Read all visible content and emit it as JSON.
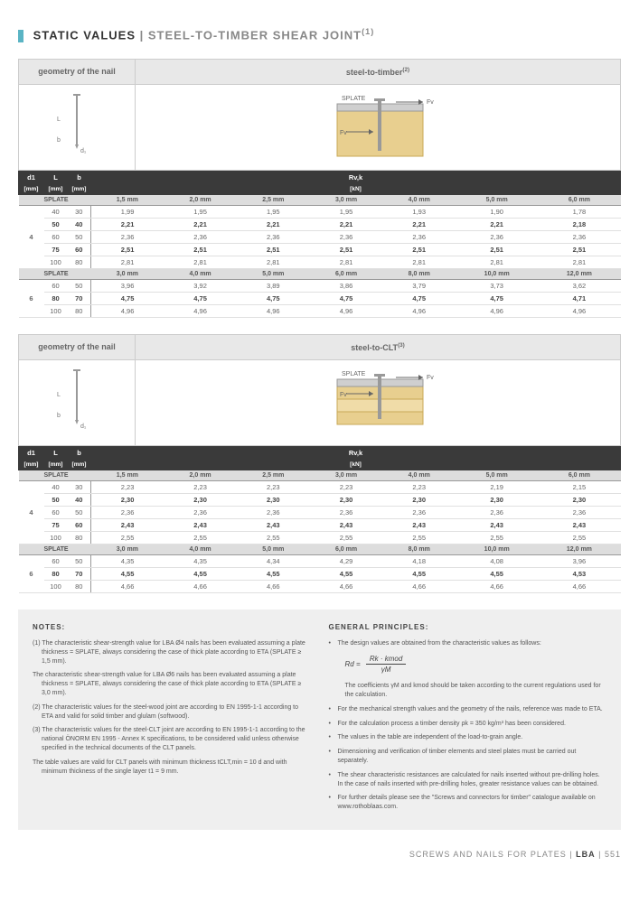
{
  "title": {
    "main": "STATIC VALUES",
    "sub": "STEEL-TO-TIMBER SHEAR JOINT",
    "sup": "(1)"
  },
  "geom_header": "geometry of the nail",
  "section1": {
    "header": "steel-to-timber",
    "sup": "(2)",
    "labels": {
      "S": "SPLATE",
      "Fv": "Fv"
    }
  },
  "section2": {
    "header": "steel-to-CLT",
    "sup": "(3)"
  },
  "cols_header": {
    "d1": "d1",
    "L": "L",
    "b": "b",
    "R": "Rv,k",
    "mm": "[mm]",
    "kn": "[kN]"
  },
  "splate_label": "SPLATE",
  "splate_units_a": [
    "1,5 mm",
    "2,0 mm",
    "2,5 mm",
    "3,0 mm",
    "4,0 mm",
    "5,0 mm",
    "6,0 mm"
  ],
  "splate_units_b": [
    "3,0 mm",
    "4,0 mm",
    "5,0 mm",
    "6,0 mm",
    "8,0 mm",
    "10,0 mm",
    "12,0 mm"
  ],
  "table1": {
    "group4": [
      {
        "L": "40",
        "b": "30",
        "v": [
          "1,99",
          "1,95",
          "1,95",
          "1,95",
          "1,93",
          "1,90",
          "1,78"
        ]
      },
      {
        "L": "50",
        "b": "40",
        "v": [
          "2,21",
          "2,21",
          "2,21",
          "2,21",
          "2,21",
          "2,21",
          "2,18"
        ],
        "bold": true
      },
      {
        "L": "60",
        "b": "50",
        "v": [
          "2,36",
          "2,36",
          "2,36",
          "2,36",
          "2,36",
          "2,36",
          "2,36"
        ]
      },
      {
        "L": "75",
        "b": "60",
        "v": [
          "2,51",
          "2,51",
          "2,51",
          "2,51",
          "2,51",
          "2,51",
          "2,51"
        ],
        "bold": true
      },
      {
        "L": "100",
        "b": "80",
        "v": [
          "2,81",
          "2,81",
          "2,81",
          "2,81",
          "2,81",
          "2,81",
          "2,81"
        ]
      }
    ],
    "group6": [
      {
        "L": "60",
        "b": "50",
        "v": [
          "3,96",
          "3,92",
          "3,89",
          "3,86",
          "3,79",
          "3,73",
          "3,62"
        ]
      },
      {
        "L": "80",
        "b": "70",
        "v": [
          "4,75",
          "4,75",
          "4,75",
          "4,75",
          "4,75",
          "4,75",
          "4,71"
        ],
        "bold": true
      },
      {
        "L": "100",
        "b": "80",
        "v": [
          "4,96",
          "4,96",
          "4,96",
          "4,96",
          "4,96",
          "4,96",
          "4,96"
        ]
      }
    ]
  },
  "table2": {
    "group4": [
      {
        "L": "40",
        "b": "30",
        "v": [
          "2,23",
          "2,23",
          "2,23",
          "2,23",
          "2,23",
          "2,19",
          "2,15"
        ]
      },
      {
        "L": "50",
        "b": "40",
        "v": [
          "2,30",
          "2,30",
          "2,30",
          "2,30",
          "2,30",
          "2,30",
          "2,30"
        ],
        "bold": true
      },
      {
        "L": "60",
        "b": "50",
        "v": [
          "2,36",
          "2,36",
          "2,36",
          "2,36",
          "2,36",
          "2,36",
          "2,36"
        ]
      },
      {
        "L": "75",
        "b": "60",
        "v": [
          "2,43",
          "2,43",
          "2,43",
          "2,43",
          "2,43",
          "2,43",
          "2,43"
        ],
        "bold": true
      },
      {
        "L": "100",
        "b": "80",
        "v": [
          "2,55",
          "2,55",
          "2,55",
          "2,55",
          "2,55",
          "2,55",
          "2,55"
        ]
      }
    ],
    "group6": [
      {
        "L": "60",
        "b": "50",
        "v": [
          "4,35",
          "4,35",
          "4,34",
          "4,29",
          "4,18",
          "4,08",
          "3,96"
        ]
      },
      {
        "L": "80",
        "b": "70",
        "v": [
          "4,55",
          "4,55",
          "4,55",
          "4,55",
          "4,55",
          "4,55",
          "4,53"
        ],
        "bold": true
      },
      {
        "L": "100",
        "b": "80",
        "v": [
          "4,66",
          "4,66",
          "4,66",
          "4,66",
          "4,66",
          "4,66",
          "4,66"
        ]
      }
    ]
  },
  "notes": {
    "title": "NOTES:",
    "items": [
      "(1) The characteristic shear-strength value for LBA Ø4 nails has been evaluated assuming a plate thickness = SPLATE, always considering the case of thick plate according to ETA (SPLATE ≥ 1,5 mm).",
      "The characteristic shear-strength value for LBA Ø6 nails has been evaluated assuming a plate thickness = SPLATE, always considering the case of thick plate according to ETA (SPLATE ≥ 3,0 mm).",
      "(2) The characteristic values for the steel-wood joint are according to EN 1995-1-1 according to ETA and valid for solid timber and glulam (softwood).",
      "(3) The characteristic values for the steel-CLT joint are according to EN 1995-1-1 according to the national ÖNORM EN 1995 - Annex K specifications, to be considered valid unless otherwise specified in the technical documents of the CLT panels.",
      "The table values are valid for CLT panels with minimum thickness tCLT,min = 10 d and with minimum thickness of the single layer t1 = 9 mm."
    ]
  },
  "principles": {
    "title": "GENERAL PRINCIPLES:",
    "intro": "The design values are obtained from the characteristic values as follows:",
    "formula": {
      "lhs": "Rd =",
      "num": "Rk · kmod",
      "den": "γM"
    },
    "coeff": "The coefficients γM and kmod should be taken according to the current regulations used for the calculation.",
    "items": [
      "For the mechanical strength values and the geometry of the nails, reference was made to ETA.",
      "For the calculation process a timber density ρk = 350 kg/m³ has been considered.",
      "The values in the table are independent of the load-to-grain angle.",
      "Dimensioning and verification of timber elements and steel plates must be carried out separately.",
      "The shear characteristic resistances are calculated for nails inserted without pre-drilling holes. In the case of nails inserted with pre-drilling holes, greater resistance values can be obtained.",
      "For further details please see the \"Screws and connectors for timber\" catalogue available on www.rothoblaas.com."
    ]
  },
  "footer": {
    "text": "SCREWS AND NAILS FOR PLATES",
    "code": "LBA",
    "page": "551"
  },
  "group_labels": {
    "g4": "4",
    "g6": "6"
  }
}
